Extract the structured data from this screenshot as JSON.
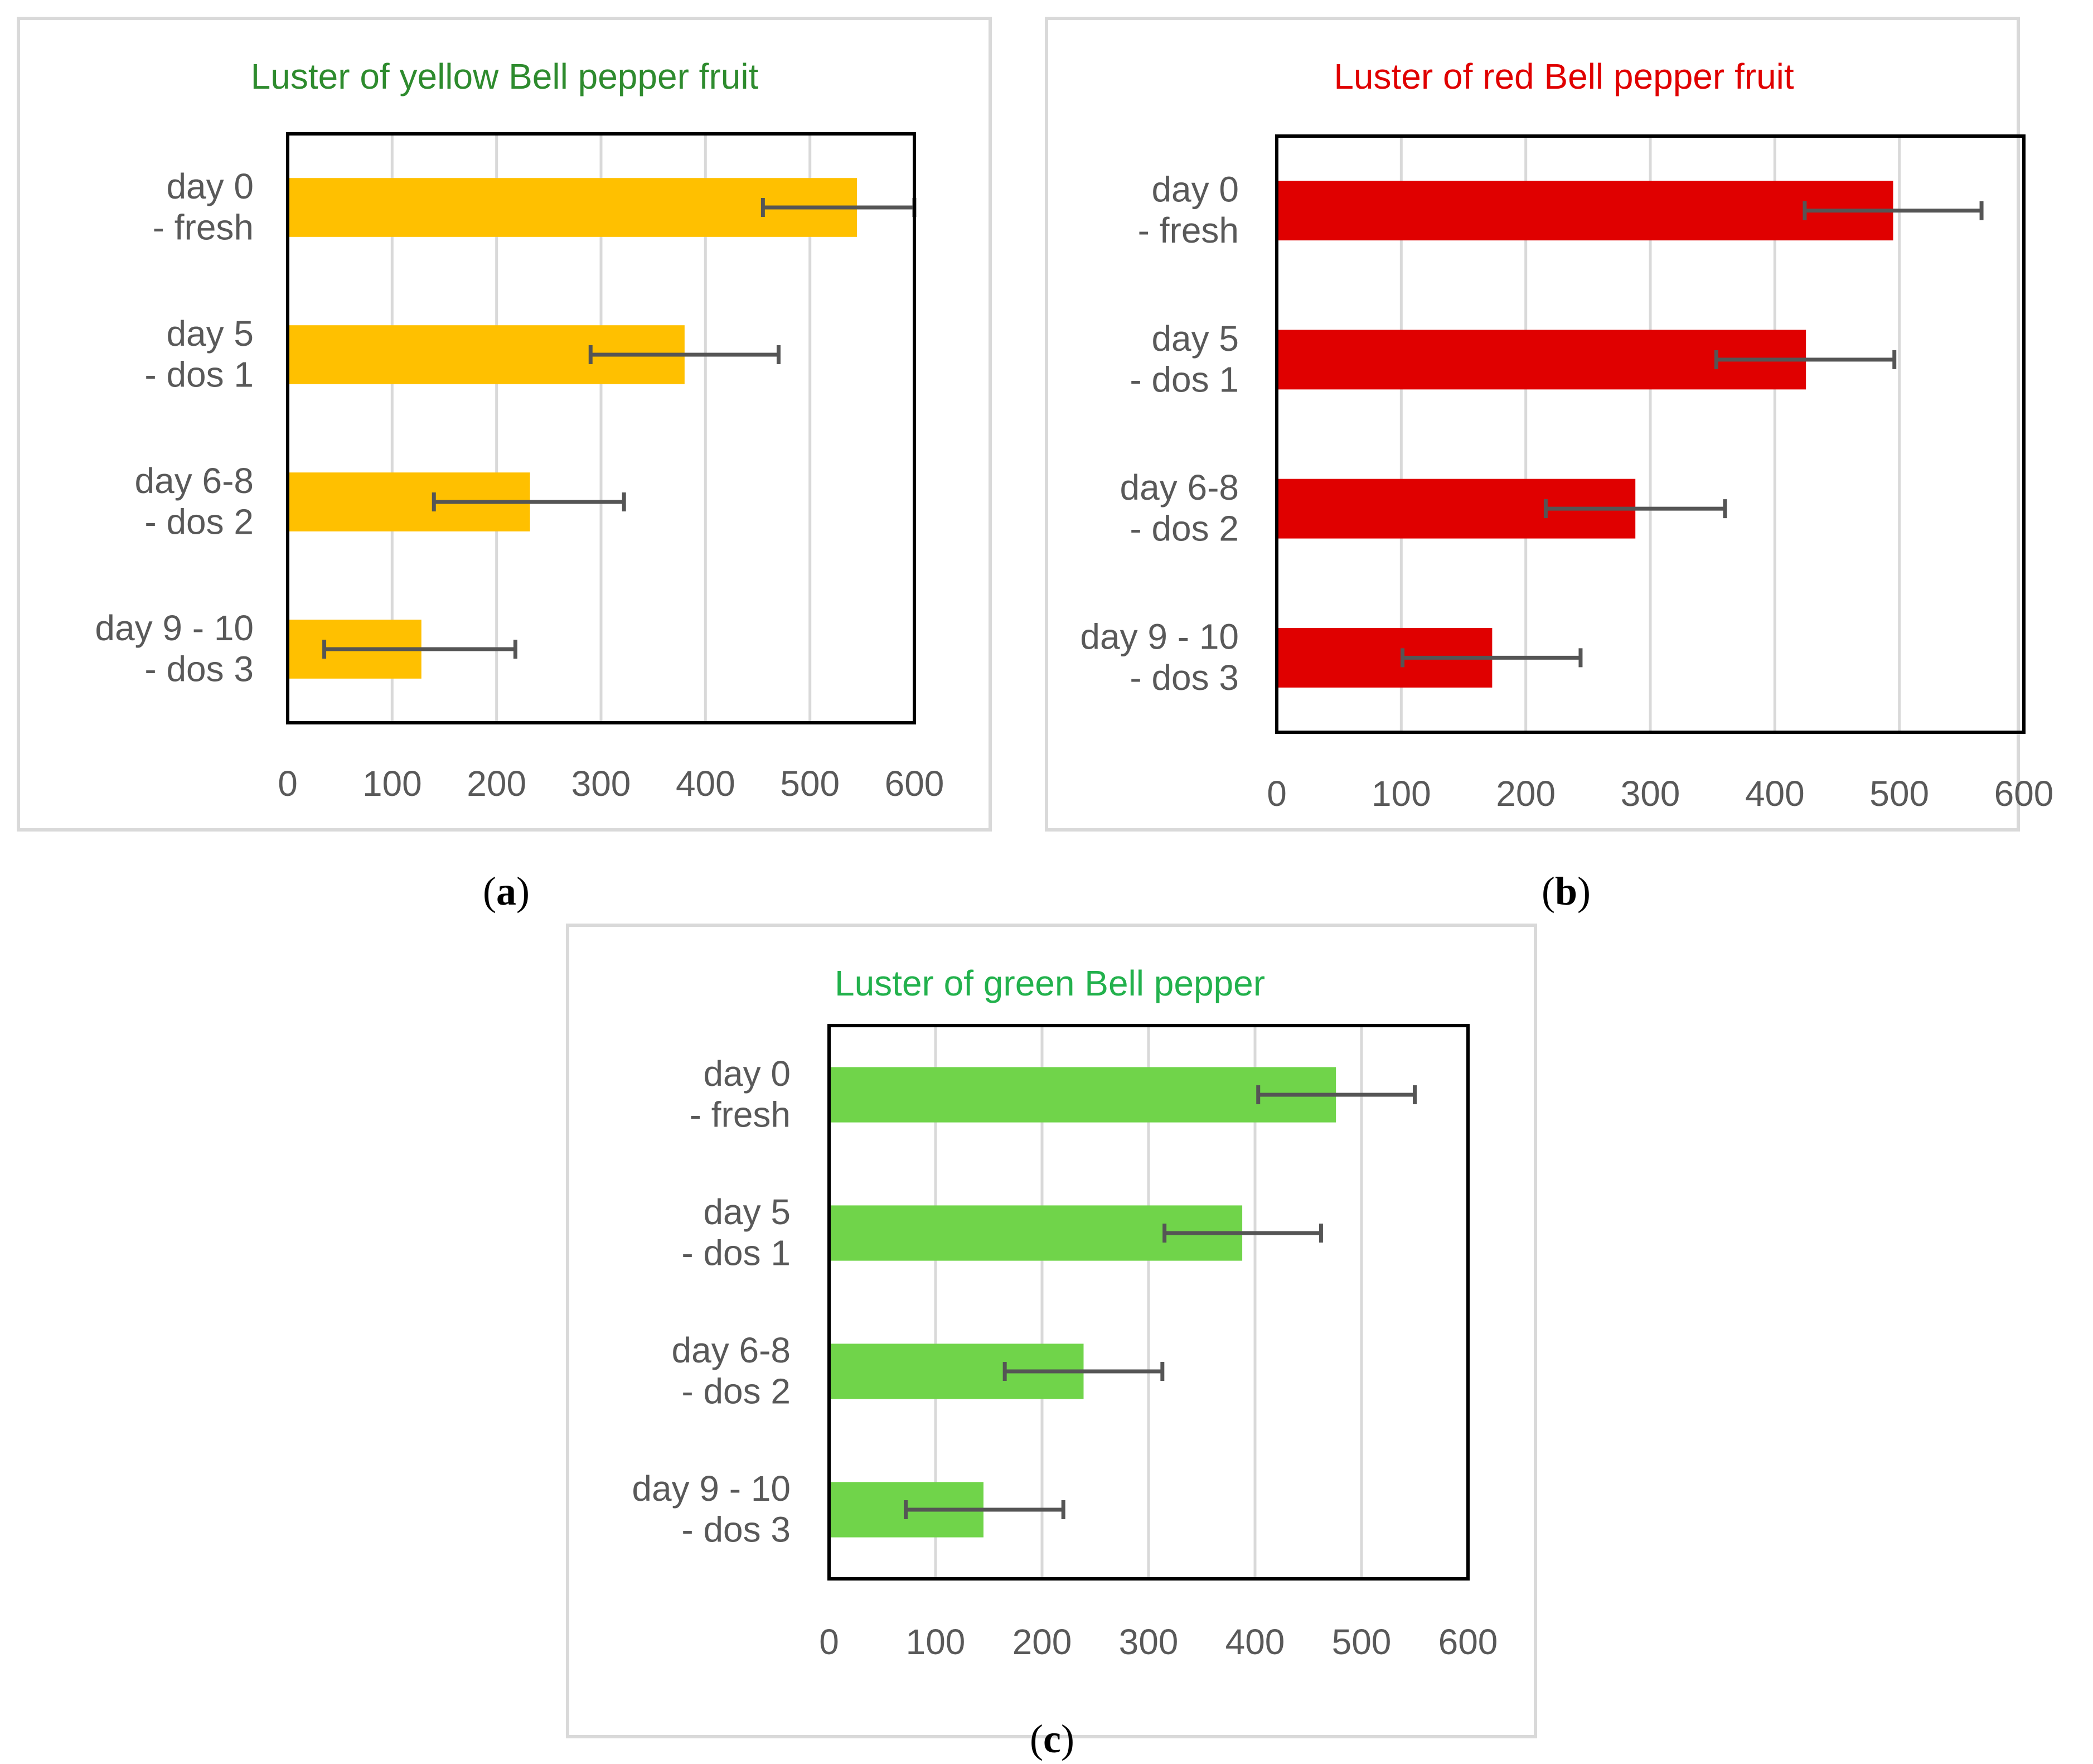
{
  "chart_data": [
    {
      "type": "bar",
      "orientation": "horizontal",
      "panel": "(a)",
      "title": "Luster of yellow Bell pepper fruit",
      "title_color": "#2e8b2e",
      "bar_color": "#ffc000",
      "categories": [
        [
          "day 0",
          "- fresh"
        ],
        [
          "day 5",
          "- dos 1"
        ],
        [
          "day 6-8",
          "- dos 2"
        ],
        [
          "day 9 - 10",
          "- dos 3"
        ]
      ],
      "values": [
        545,
        380,
        232,
        128
      ],
      "error_low": [
        455,
        290,
        140,
        35
      ],
      "error_high": [
        600,
        470,
        322,
        218
      ],
      "xlim": [
        0,
        600
      ],
      "xticks": [
        "0",
        "100",
        "200",
        "300",
        "400",
        "500",
        "600"
      ]
    },
    {
      "type": "bar",
      "orientation": "horizontal",
      "panel": "(b)",
      "title": "Luster of red Bell pepper fruit",
      "title_color": "#e00000",
      "bar_color": "#e00000",
      "categories": [
        [
          "day 0",
          "- fresh"
        ],
        [
          "day 5",
          "- dos 1"
        ],
        [
          "day 6-8",
          "- dos 2"
        ],
        [
          "day 9 - 10",
          "- dos 3"
        ]
      ],
      "values": [
        495,
        425,
        288,
        173
      ],
      "error_low": [
        424,
        353,
        216,
        101
      ],
      "error_high": [
        566,
        496,
        360,
        244
      ],
      "xlim": [
        0,
        600
      ],
      "xticks": [
        "0",
        "100",
        "200",
        "300",
        "400",
        "500",
        "600"
      ]
    },
    {
      "type": "bar",
      "orientation": "horizontal",
      "panel": "(c)",
      "title": "Luster of green Bell pepper",
      "title_color": "#22b14c",
      "bar_color": "#70d44a",
      "categories": [
        [
          "day 0",
          "- fresh"
        ],
        [
          "day 5",
          "- dos 1"
        ],
        [
          "day 6-8",
          "- dos 2"
        ],
        [
          "day 9 - 10",
          "- dos 3"
        ]
      ],
      "values": [
        476,
        388,
        239,
        145
      ],
      "error_low": [
        403,
        315,
        165,
        72
      ],
      "error_high": [
        550,
        462,
        313,
        220
      ],
      "xlim": [
        0,
        600
      ],
      "xticks": [
        "0",
        "100",
        "200",
        "300",
        "400",
        "500",
        "600"
      ]
    }
  ]
}
